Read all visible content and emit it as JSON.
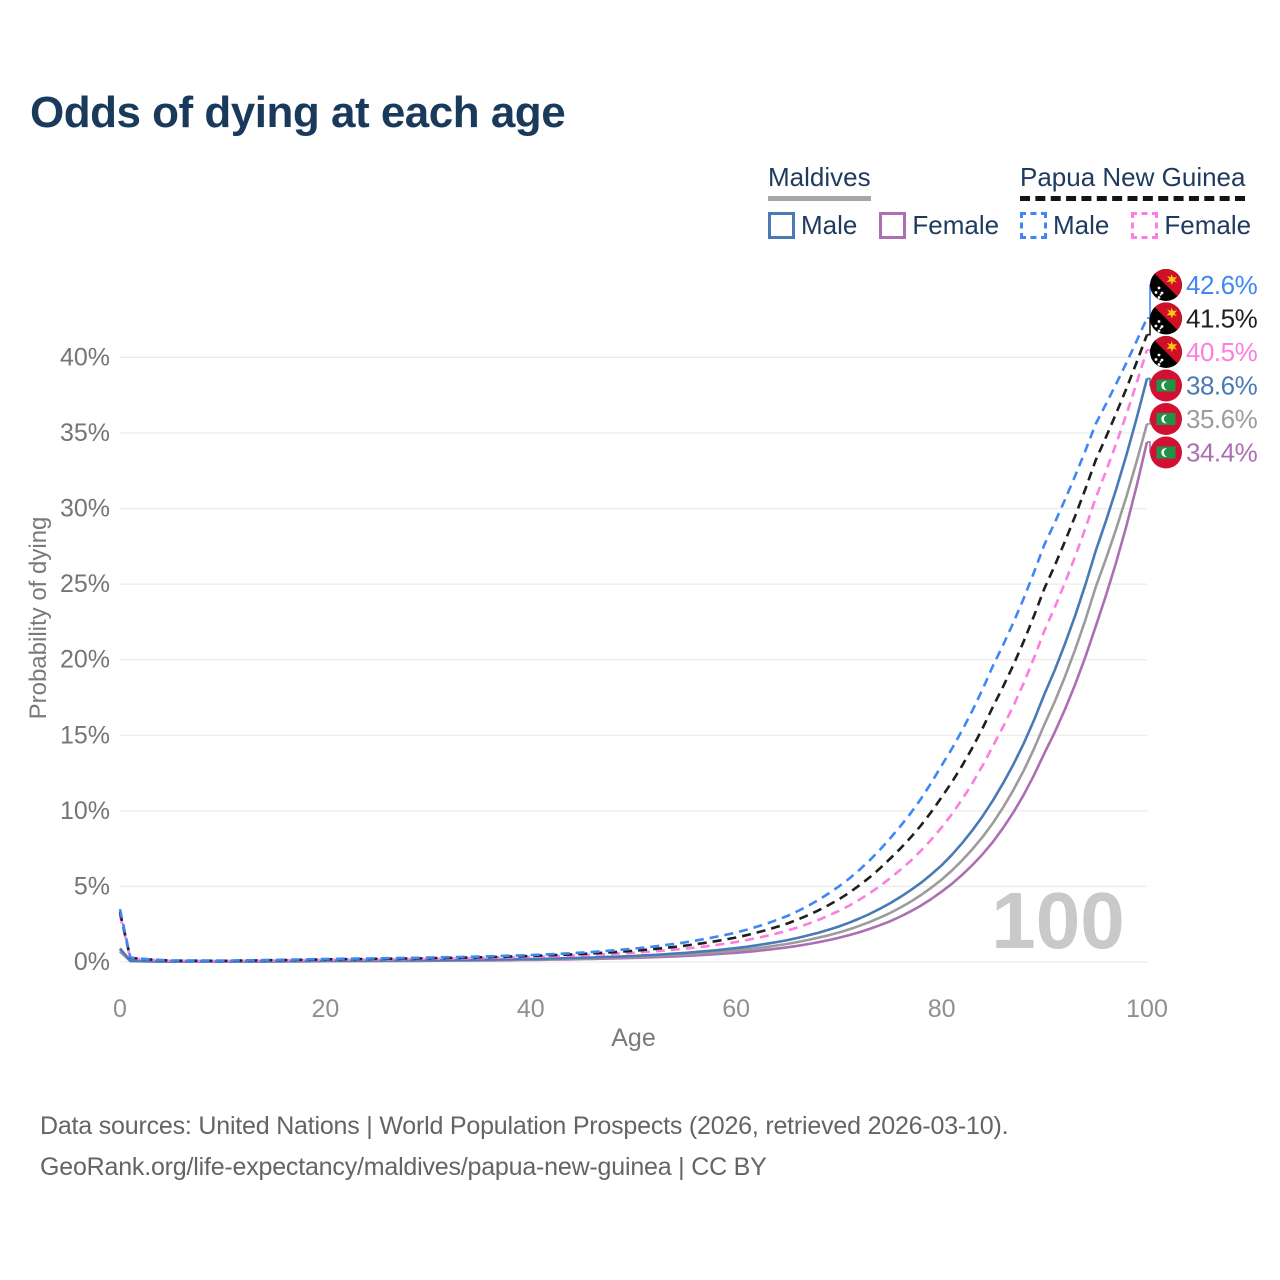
{
  "title": "Odds of dying at each age",
  "legend": {
    "groups": [
      {
        "name": "Maldives",
        "line_style": "solid",
        "underline_color": "#a6a6a6",
        "items": [
          {
            "label": "Male",
            "color": "#4a7ab5"
          },
          {
            "label": "Female",
            "color": "#ab6fb2"
          }
        ]
      },
      {
        "name": "Papua New Guinea",
        "line_style": "dashed",
        "underline_color": "#151515",
        "items": [
          {
            "label": "Male",
            "color": "#3f87f5"
          },
          {
            "label": "Female",
            "color": "#fb7ee0"
          }
        ]
      }
    ]
  },
  "chart_data": {
    "type": "line",
    "xlabel": "Age",
    "ylabel": "Probability of dying",
    "xlim": [
      0,
      100
    ],
    "ylim": [
      0,
      44
    ],
    "x_ticks": [
      0,
      20,
      40,
      60,
      80,
      100
    ],
    "y_ticks": [
      0,
      5,
      10,
      15,
      20,
      25,
      30,
      35,
      40
    ],
    "y_tick_suffix": "%",
    "grid": true,
    "hover_age_indicator": "100",
    "x": [
      0,
      1,
      5,
      10,
      15,
      20,
      25,
      30,
      35,
      40,
      45,
      50,
      55,
      60,
      65,
      70,
      75,
      80,
      85,
      90,
      95,
      100
    ],
    "series": [
      {
        "id": "png-male",
        "country": "Papua New Guinea",
        "group": "Male",
        "color": "#3f87f5",
        "dashed": true,
        "flag": "png",
        "end_label": "42.6%",
        "values": [
          3.5,
          0.3,
          0.1,
          0.09,
          0.14,
          0.2,
          0.24,
          0.29,
          0.36,
          0.46,
          0.62,
          0.88,
          1.3,
          1.95,
          3.05,
          5.0,
          8.2,
          13.0,
          19.6,
          27.6,
          35.6,
          42.6
        ]
      },
      {
        "id": "png-all",
        "country": "Papua New Guinea",
        "group": "All",
        "color": "#1f1f1f",
        "dashed": true,
        "flag": "png",
        "end_label": "41.5%",
        "values": [
          3.3,
          0.28,
          0.09,
          0.08,
          0.12,
          0.17,
          0.21,
          0.25,
          0.31,
          0.4,
          0.53,
          0.74,
          1.08,
          1.62,
          2.55,
          4.15,
          6.85,
          10.9,
          16.9,
          24.7,
          33.2,
          41.5
        ]
      },
      {
        "id": "png-female",
        "country": "Papua New Guinea",
        "group": "Female",
        "color": "#fb7ee0",
        "dashed": true,
        "flag": "png",
        "end_label": "40.5%",
        "values": [
          3.1,
          0.26,
          0.08,
          0.07,
          0.1,
          0.14,
          0.17,
          0.21,
          0.26,
          0.34,
          0.45,
          0.61,
          0.88,
          1.32,
          2.08,
          3.38,
          5.55,
          8.9,
          14.3,
          21.9,
          30.7,
          40.5
        ]
      },
      {
        "id": "mdv-male",
        "country": "Maldives",
        "group": "Male",
        "color": "#4a7ab5",
        "dashed": false,
        "flag": "mdv",
        "end_label": "38.6%",
        "values": [
          0.9,
          0.08,
          0.03,
          0.03,
          0.05,
          0.08,
          0.1,
          0.12,
          0.15,
          0.2,
          0.28,
          0.4,
          0.6,
          0.92,
          1.45,
          2.35,
          3.9,
          6.4,
          10.7,
          17.7,
          27.2,
          38.6
        ]
      },
      {
        "id": "mdv-all",
        "country": "Maldives",
        "group": "All",
        "color": "#9c9c9c",
        "dashed": false,
        "flag": "mdv",
        "end_label": "35.6%",
        "values": [
          0.8,
          0.07,
          0.03,
          0.03,
          0.04,
          0.06,
          0.08,
          0.1,
          0.13,
          0.17,
          0.24,
          0.34,
          0.5,
          0.76,
          1.2,
          1.95,
          3.25,
          5.45,
          9.2,
          15.7,
          24.8,
          35.6
        ]
      },
      {
        "id": "mdv-female",
        "country": "Maldives",
        "group": "Female",
        "color": "#ab6fb2",
        "dashed": false,
        "flag": "mdv",
        "end_label": "34.4%",
        "values": [
          0.7,
          0.06,
          0.02,
          0.02,
          0.03,
          0.05,
          0.06,
          0.08,
          0.1,
          0.14,
          0.19,
          0.27,
          0.4,
          0.61,
          0.97,
          1.6,
          2.7,
          4.65,
          7.95,
          13.8,
          22.2,
          34.4
        ]
      }
    ]
  },
  "footer": {
    "line1": "Data sources: United Nations | World Population Prospects (2026, retrieved 2026-03-10).",
    "line2": "GeoRank.org/life-expectancy/maldives/papua-new-guinea | CC BY"
  }
}
